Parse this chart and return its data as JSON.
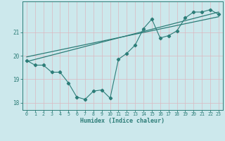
{
  "xlabel": "Humidex (Indice chaleur)",
  "ylabel": "",
  "bg_color": "#cce8ec",
  "line_color": "#2d7d78",
  "xlim": [
    -0.5,
    23.5
  ],
  "ylim": [
    17.7,
    22.3
  ],
  "yticks": [
    18,
    19,
    20,
    21
  ],
  "xticks": [
    0,
    1,
    2,
    3,
    4,
    5,
    6,
    7,
    8,
    9,
    10,
    11,
    12,
    13,
    14,
    15,
    16,
    17,
    18,
    19,
    20,
    21,
    22,
    23
  ],
  "curve_x": [
    0,
    1,
    2,
    3,
    4,
    5,
    6,
    7,
    8,
    9,
    10,
    11,
    12,
    13,
    14,
    15,
    16,
    17,
    18,
    19,
    20,
    21,
    22,
    23
  ],
  "curve_y": [
    19.8,
    19.6,
    19.6,
    19.3,
    19.3,
    18.85,
    18.25,
    18.15,
    18.5,
    18.55,
    18.2,
    19.85,
    20.1,
    20.45,
    21.15,
    21.55,
    20.75,
    20.85,
    21.05,
    21.6,
    21.85,
    21.85,
    21.95,
    21.75
  ],
  "trend1_x": [
    0,
    23
  ],
  "trend1_y": [
    19.75,
    21.85
  ],
  "trend2_x": [
    0,
    23
  ],
  "trend2_y": [
    19.95,
    21.65
  ],
  "grid_major_color": "#b0d5da",
  "grid_minor_color": "#dbb8c0"
}
